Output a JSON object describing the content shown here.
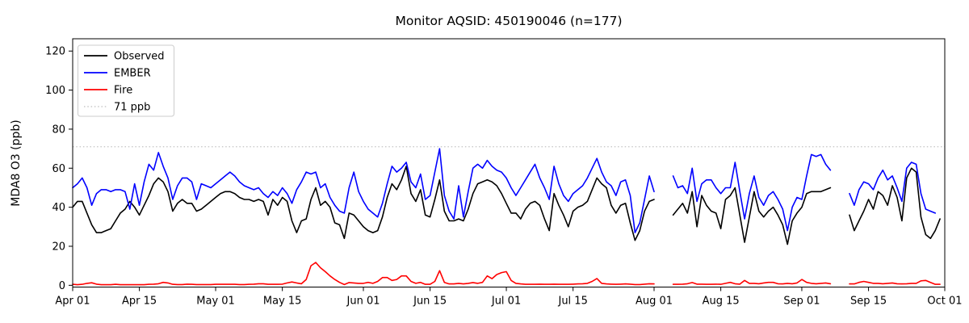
{
  "title": "Monitor AQSID: 450190046 (n=177)",
  "monitor_aqsid": "450190046",
  "n_count": 177,
  "chart_data": {
    "type": "line",
    "title": "Monitor AQSID: 450190046 (n=177)",
    "xlabel": "",
    "ylabel": "MDA8 O3 (ppb)",
    "ylim": [
      -0.9,
      126.3
    ],
    "grid": false,
    "legend_position": "upper-left",
    "y_ticks": [
      0,
      20,
      40,
      60,
      80,
      100,
      120
    ],
    "x_ticks": [
      {
        "label": "Apr 01",
        "day": 0
      },
      {
        "label": "Apr 15",
        "day": 14
      },
      {
        "label": "May 01",
        "day": 30
      },
      {
        "label": "May 15",
        "day": 44
      },
      {
        "label": "Jun 01",
        "day": 61
      },
      {
        "label": "Jun 15",
        "day": 75
      },
      {
        "label": "Jul 01",
        "day": 91
      },
      {
        "label": "Jul 15",
        "day": 105
      },
      {
        "label": "Aug 01",
        "day": 122
      },
      {
        "label": "Aug 15",
        "day": 136
      },
      {
        "label": "Sep 01",
        "day": 153
      },
      {
        "label": "Sep 15",
        "day": 167
      },
      {
        "label": "Oct 01",
        "day": 183
      }
    ],
    "x_start_date": "Apr 01",
    "x_end_date": "Oct 01",
    "x_step_days": 1,
    "days_total": 183,
    "missing_dates": [
      "Aug 02",
      "Aug 03",
      "Aug 04",
      "Sep 08",
      "Sep 09",
      "Sep 10"
    ],
    "threshold": {
      "value": 71,
      "label": "71 ppb",
      "color": "#c9c9c9",
      "style": "dotted"
    },
    "legend": [
      {
        "label": "Observed",
        "color": "#000000",
        "dotted": false
      },
      {
        "label": "EMBER",
        "color": "#0000ff",
        "dotted": false
      },
      {
        "label": "Fire",
        "color": "#ff0000",
        "dotted": false
      },
      {
        "label": "71 ppb",
        "color": "#c9c9c9",
        "dotted": true
      }
    ],
    "series": [
      {
        "name": "Observed",
        "color": "#000000",
        "values": [
          40,
          43,
          43,
          37,
          31,
          27,
          27,
          28,
          29,
          33,
          37,
          39,
          43,
          40,
          36,
          41,
          46,
          52,
          55,
          53,
          48,
          38,
          42,
          44,
          42,
          42,
          38,
          39,
          41,
          43,
          45,
          47,
          48,
          48,
          47,
          45,
          44,
          44,
          43,
          44,
          43,
          36,
          44,
          41,
          45,
          43,
          33,
          27,
          33,
          34,
          44,
          50,
          41,
          43,
          40,
          32,
          31,
          24,
          37,
          36,
          33,
          30,
          28,
          27,
          28,
          35,
          45,
          52,
          49,
          54,
          61,
          47,
          43,
          49,
          36,
          35,
          44,
          54,
          38,
          33,
          33,
          34,
          33,
          39,
          47,
          52,
          53,
          54,
          53,
          51,
          47,
          42,
          37,
          37,
          34,
          39,
          42,
          43,
          41,
          34,
          28,
          47,
          41,
          36,
          30,
          38,
          40,
          41,
          43,
          49,
          55,
          52,
          50,
          41,
          37,
          41,
          42,
          32,
          23,
          28,
          38,
          43,
          44,
          null,
          null,
          null,
          36,
          39,
          42,
          37,
          48,
          30,
          46,
          41,
          38,
          37,
          29,
          44,
          46,
          50,
          36,
          22,
          35,
          48,
          38,
          35,
          38,
          40,
          36,
          31,
          21,
          33,
          37,
          40,
          47,
          48,
          48,
          48,
          49,
          50,
          null,
          null,
          null,
          36,
          28,
          33,
          38,
          44,
          39,
          48,
          46,
          41,
          51,
          45,
          33,
          55,
          60,
          58,
          35,
          26,
          24,
          28,
          34
        ]
      },
      {
        "name": "EMBER",
        "color": "#0000ff",
        "values": [
          50,
          52,
          55,
          50,
          41,
          47,
          49,
          49,
          48,
          49,
          49,
          48,
          39,
          52,
          41,
          53,
          62,
          59,
          68,
          61,
          55,
          44,
          51,
          55,
          55,
          53,
          44,
          52,
          51,
          50,
          52,
          54,
          56,
          58,
          56,
          53,
          51,
          50,
          49,
          50,
          47,
          45,
          48,
          46,
          50,
          47,
          42,
          49,
          53,
          58,
          57,
          58,
          50,
          52,
          45,
          41,
          38,
          37,
          50,
          58,
          48,
          43,
          39,
          37,
          35,
          42,
          52,
          61,
          58,
          60,
          63,
          53,
          50,
          57,
          44,
          46,
          58,
          70,
          46,
          38,
          34,
          51,
          35,
          48,
          60,
          62,
          60,
          64,
          61,
          59,
          58,
          55,
          50,
          46,
          50,
          54,
          58,
          62,
          55,
          50,
          44,
          61,
          52,
          46,
          43,
          47,
          49,
          51,
          55,
          60,
          65,
          58,
          53,
          51,
          46,
          53,
          54,
          46,
          27,
          32,
          44,
          56,
          48,
          null,
          null,
          null,
          56,
          50,
          51,
          47,
          60,
          43,
          52,
          54,
          54,
          50,
          47,
          50,
          50,
          63,
          48,
          34,
          47,
          56,
          45,
          41,
          46,
          48,
          44,
          39,
          28,
          40,
          45,
          44,
          56,
          67,
          66,
          67,
          62,
          59,
          null,
          null,
          null,
          47,
          41,
          49,
          53,
          52,
          49,
          55,
          59,
          54,
          56,
          50,
          43,
          60,
          63,
          62,
          47,
          39,
          38,
          37,
          null
        ]
      },
      {
        "name": "Fire",
        "color": "#ff0000",
        "values": [
          0.5,
          0.3,
          0.5,
          1.0,
          1.3,
          0.6,
          0.3,
          0.3,
          0.3,
          0.5,
          0.3,
          0.3,
          0.3,
          0.3,
          0.3,
          0.3,
          0.5,
          0.6,
          0.8,
          1.5,
          1.2,
          0.5,
          0.4,
          0.4,
          0.6,
          0.5,
          0.4,
          0.4,
          0.4,
          0.4,
          0.5,
          0.5,
          0.5,
          0.5,
          0.5,
          0.4,
          0.4,
          0.5,
          0.6,
          0.8,
          0.8,
          0.5,
          0.5,
          0.5,
          0.6,
          1.2,
          1.7,
          1.2,
          0.8,
          3.0,
          10.0,
          11.7,
          9.0,
          7.0,
          4.8,
          3.0,
          1.5,
          0.4,
          1.4,
          1.2,
          1.0,
          1.0,
          1.5,
          1.0,
          2.0,
          4.0,
          4.0,
          2.5,
          3.0,
          4.8,
          4.8,
          2.0,
          1.0,
          1.5,
          0.5,
          0.5,
          2.0,
          7.5,
          1.5,
          0.7,
          0.7,
          1.0,
          0.7,
          1.0,
          1.4,
          1.0,
          1.5,
          4.8,
          3.4,
          5.5,
          6.5,
          7.0,
          2.5,
          1.0,
          0.7,
          0.5,
          0.5,
          0.5,
          0.6,
          0.5,
          0.5,
          0.6,
          0.5,
          0.5,
          0.5,
          0.6,
          0.7,
          0.8,
          1.0,
          2.0,
          3.5,
          1.0,
          0.7,
          0.6,
          0.5,
          0.6,
          0.7,
          0.6,
          0.4,
          0.4,
          0.6,
          0.8,
          0.7,
          null,
          null,
          null,
          0.5,
          0.5,
          0.6,
          0.8,
          1.4,
          0.6,
          0.6,
          0.5,
          0.5,
          0.6,
          0.5,
          1.0,
          1.5,
          0.8,
          0.6,
          2.5,
          1.0,
          1.0,
          0.8,
          1.2,
          1.5,
          1.5,
          0.8,
          0.7,
          1.0,
          0.8,
          1.2,
          3.0,
          1.5,
          1.0,
          0.8,
          1.0,
          1.2,
          0.8,
          null,
          null,
          null,
          0.7,
          0.7,
          1.5,
          2.0,
          1.5,
          1.0,
          1.0,
          0.8,
          1.0,
          1.2,
          0.8,
          0.7,
          0.8,
          1.0,
          1.0,
          2.3,
          2.5,
          1.5,
          0.5,
          0.5
        ]
      }
    ]
  }
}
